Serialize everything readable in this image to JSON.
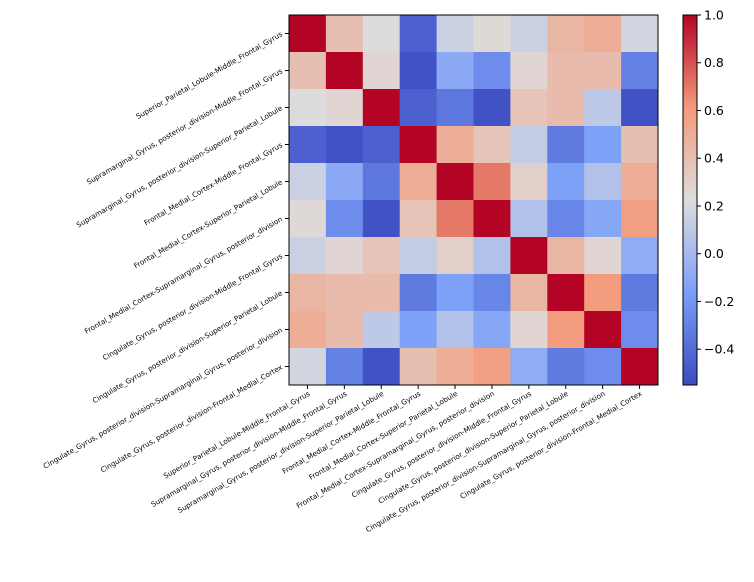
{
  "chart_data": {
    "type": "heatmap",
    "title": "",
    "labels": [
      "Superior_Parietal_Lobule-Middle_Frontal_Gyrus",
      "Supramarginal_Gyrus, posterior_division-Middle_Frontal_Gyrus",
      "Supramarginal_Gyrus, posterior_division-Superior_Parietal_Lobule",
      "Frontal_Medial_Cortex-Middle_Frontal_Gyrus",
      "Frontal_Medial_Cortex-Superior_Parietal_Lobule",
      "Frontal_Medial_Cortex-Supramarginal_Gyrus, posterior_division",
      "Cingulate_Gyrus, posterior_division-Middle_Frontal_Gyrus",
      "Cingulate_Gyrus, posterior_division-Superior_Parietal_Lobule",
      "Cingulate_Gyrus, posterior_division-Supramarginal_Gyrus, posterior_division",
      "Cingulate_Gyrus, posterior_division-Frontal_Medial_Cortex"
    ],
    "values": [
      [
        1,
        0.4,
        0.22,
        -0.45,
        0.15,
        0.25,
        0.15,
        0.45,
        0.5,
        0.18
      ],
      [
        0.4,
        1,
        0.27,
        -0.52,
        -0.1,
        -0.25,
        0.27,
        0.42,
        0.42,
        -0.3
      ],
      [
        0.22,
        0.27,
        1,
        -0.45,
        -0.35,
        -0.52,
        0.37,
        0.42,
        0.1,
        -0.52
      ],
      [
        -0.45,
        -0.52,
        -0.45,
        1,
        0.5,
        0.37,
        0.12,
        -0.33,
        -0.15,
        0.4
      ],
      [
        0.15,
        -0.1,
        -0.35,
        0.5,
        1,
        0.7,
        0.3,
        -0.15,
        0.05,
        0.5
      ],
      [
        0.25,
        -0.25,
        -0.52,
        0.37,
        0.7,
        1,
        0.05,
        -0.28,
        -0.12,
        0.58
      ],
      [
        0.15,
        0.27,
        0.37,
        0.12,
        0.3,
        0.05,
        1,
        0.45,
        0.27,
        -0.08
      ],
      [
        0.45,
        0.42,
        0.42,
        -0.33,
        -0.15,
        -0.28,
        0.45,
        1,
        0.6,
        -0.33
      ],
      [
        0.5,
        0.42,
        0.1,
        -0.15,
        0.05,
        -0.12,
        0.27,
        0.6,
        1,
        -0.25
      ],
      [
        0.18,
        -0.3,
        -0.52,
        0.4,
        0.5,
        0.58,
        -0.08,
        -0.33,
        -0.25,
        1
      ]
    ],
    "colormap": "coolwarm",
    "colorbar": {
      "range": [
        -0.55,
        1.0
      ],
      "ticks": [
        -0.4,
        -0.2,
        0.0,
        0.2,
        0.4,
        0.6,
        0.8,
        1.0
      ],
      "tick_labels": [
        "−0.4",
        "−0.2",
        "0.0",
        "0.2",
        "0.4",
        "0.6",
        "0.8",
        "1.0"
      ],
      "placement": "right"
    },
    "colors": [
      "#3b4cc0",
      "#7b9ff9",
      "#dddddd",
      "#f49a7b",
      "#b40426"
    ]
  }
}
